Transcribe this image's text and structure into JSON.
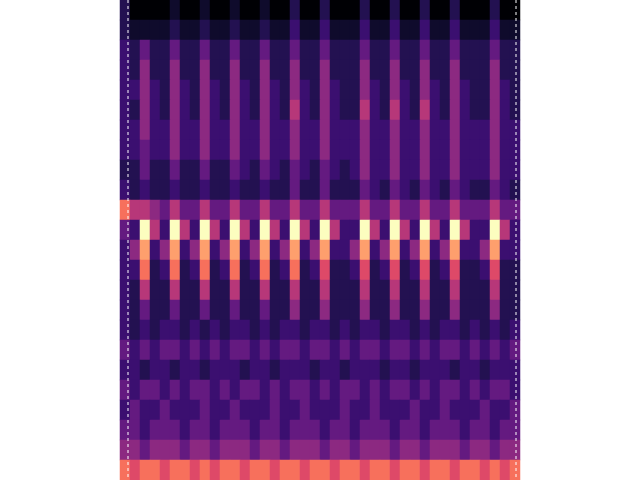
{
  "chart_data": {
    "type": "heatmap",
    "tick_labels": false,
    "zlim": [
      0,
      10
    ],
    "z": [
      [
        2,
        0,
        0,
        0,
        0,
        1,
        0,
        0,
        1,
        0,
        0,
        1,
        0,
        0,
        1,
        0,
        0,
        2,
        0,
        0,
        2,
        0,
        0,
        0,
        2,
        0,
        0,
        2,
        0,
        0,
        2,
        0,
        0,
        2,
        0,
        0,
        0,
        2,
        0,
        0
      ],
      [
        2,
        1,
        1,
        1,
        1,
        2,
        1,
        1,
        2,
        1,
        1,
        2,
        1,
        1,
        2,
        1,
        1,
        3,
        1,
        1,
        3,
        1,
        1,
        1,
        3,
        1,
        1,
        3,
        1,
        1,
        3,
        1,
        1,
        3,
        1,
        1,
        1,
        3,
        1,
        1
      ],
      [
        3,
        2,
        4,
        2,
        2,
        4,
        2,
        2,
        4,
        2,
        2,
        4,
        2,
        2,
        4,
        2,
        2,
        4,
        2,
        2,
        4,
        2,
        2,
        2,
        4,
        2,
        2,
        4,
        2,
        2,
        4,
        2,
        2,
        4,
        2,
        2,
        2,
        4,
        2,
        2
      ],
      [
        3,
        2,
        5,
        2,
        2,
        5,
        2,
        2,
        5,
        2,
        2,
        5,
        2,
        2,
        5,
        2,
        2,
        5,
        2,
        2,
        5,
        2,
        2,
        2,
        5,
        2,
        2,
        5,
        2,
        2,
        5,
        2,
        2,
        5,
        2,
        2,
        2,
        5,
        2,
        2
      ],
      [
        3,
        3,
        5,
        3,
        2,
        5,
        3,
        2,
        5,
        3,
        2,
        5,
        3,
        2,
        5,
        3,
        2,
        5,
        3,
        2,
        5,
        3,
        2,
        2,
        5,
        3,
        2,
        5,
        3,
        2,
        5,
        3,
        2,
        5,
        3,
        2,
        2,
        5,
        3,
        2
      ],
      [
        3,
        2,
        5,
        3,
        2,
        5,
        3,
        2,
        5,
        3,
        2,
        5,
        3,
        2,
        5,
        3,
        2,
        6,
        3,
        2,
        5,
        3,
        2,
        2,
        6,
        3,
        2,
        6,
        3,
        2,
        6,
        3,
        2,
        5,
        3,
        2,
        2,
        5,
        3,
        2
      ],
      [
        3,
        3,
        5,
        3,
        3,
        5,
        3,
        3,
        5,
        3,
        3,
        5,
        3,
        3,
        5,
        3,
        3,
        5,
        3,
        3,
        5,
        3,
        3,
        3,
        5,
        3,
        3,
        5,
        3,
        3,
        5,
        3,
        3,
        5,
        3,
        3,
        3,
        5,
        3,
        3
      ],
      [
        3,
        3,
        4,
        3,
        3,
        5,
        3,
        3,
        5,
        3,
        3,
        5,
        3,
        3,
        5,
        3,
        3,
        5,
        3,
        3,
        5,
        3,
        3,
        3,
        5,
        3,
        3,
        5,
        3,
        3,
        5,
        3,
        3,
        5,
        3,
        3,
        3,
        5,
        3,
        3
      ],
      [
        2,
        2,
        4,
        2,
        2,
        4,
        2,
        2,
        4,
        2,
        2,
        4,
        3,
        2,
        4,
        3,
        2,
        4,
        3,
        2,
        4,
        3,
        2,
        3,
        5,
        3,
        3,
        5,
        3,
        3,
        5,
        3,
        3,
        5,
        3,
        3,
        3,
        5,
        3,
        3
      ],
      [
        3,
        2,
        3,
        2,
        2,
        3,
        2,
        2,
        3,
        2,
        2,
        3,
        2,
        2,
        3,
        2,
        2,
        4,
        2,
        2,
        4,
        2,
        2,
        2,
        4,
        3,
        2,
        4,
        3,
        2,
        4,
        3,
        2,
        4,
        3,
        2,
        2,
        4,
        3,
        2
      ],
      [
        8,
        6,
        6,
        5,
        4,
        6,
        4,
        4,
        6,
        4,
        4,
        6,
        4,
        4,
        6,
        4,
        4,
        6,
        4,
        4,
        6,
        4,
        4,
        4,
        6,
        4,
        4,
        6,
        4,
        4,
        6,
        4,
        4,
        6,
        4,
        4,
        4,
        6,
        4,
        4
      ],
      [
        4,
        3,
        10,
        6,
        3,
        10,
        6,
        3,
        10,
        6,
        3,
        10,
        6,
        3,
        10,
        6,
        3,
        10,
        6,
        3,
        10,
        6,
        3,
        3,
        10,
        6,
        3,
        10,
        6,
        3,
        10,
        6,
        3,
        10,
        6,
        3,
        3,
        10,
        6,
        3
      ],
      [
        3,
        5,
        9,
        3,
        5,
        9,
        3,
        5,
        9,
        3,
        5,
        9,
        3,
        5,
        9,
        3,
        5,
        9,
        3,
        5,
        9,
        3,
        3,
        5,
        9,
        3,
        5,
        9,
        3,
        5,
        9,
        3,
        5,
        9,
        3,
        3,
        5,
        9,
        3,
        3
      ],
      [
        3,
        3,
        8,
        2,
        3,
        8,
        2,
        3,
        8,
        2,
        3,
        8,
        2,
        3,
        8,
        2,
        3,
        8,
        2,
        3,
        7,
        2,
        2,
        3,
        7,
        2,
        3,
        7,
        2,
        3,
        7,
        2,
        3,
        7,
        2,
        2,
        3,
        7,
        2,
        2
      ],
      [
        3,
        2,
        6,
        2,
        2,
        6,
        2,
        2,
        6,
        2,
        2,
        6,
        2,
        2,
        6,
        2,
        2,
        6,
        2,
        2,
        6,
        2,
        2,
        2,
        6,
        2,
        2,
        6,
        2,
        2,
        6,
        2,
        2,
        6,
        2,
        2,
        2,
        6,
        2,
        2
      ],
      [
        3,
        2,
        4,
        2,
        2,
        4,
        2,
        2,
        4,
        2,
        2,
        4,
        2,
        2,
        4,
        2,
        2,
        5,
        2,
        2,
        5,
        2,
        2,
        2,
        5,
        2,
        2,
        5,
        2,
        2,
        5,
        2,
        2,
        5,
        2,
        2,
        2,
        5,
        2,
        2
      ],
      [
        3,
        2,
        3,
        2,
        3,
        3,
        2,
        3,
        2,
        3,
        2,
        3,
        3,
        2,
        3,
        2,
        3,
        3,
        2,
        3,
        3,
        2,
        3,
        2,
        3,
        3,
        2,
        3,
        3,
        2,
        3,
        2,
        3,
        3,
        2,
        3,
        2,
        3,
        2,
        3
      ],
      [
        4,
        3,
        4,
        3,
        4,
        4,
        3,
        4,
        3,
        4,
        3,
        4,
        4,
        3,
        4,
        3,
        4,
        4,
        3,
        4,
        4,
        3,
        4,
        3,
        4,
        4,
        3,
        4,
        4,
        3,
        4,
        3,
        4,
        4,
        3,
        4,
        3,
        4,
        3,
        4
      ],
      [
        3,
        3,
        2,
        3,
        3,
        2,
        3,
        3,
        2,
        3,
        3,
        3,
        2,
        3,
        3,
        2,
        3,
        3,
        3,
        2,
        3,
        3,
        2,
        3,
        3,
        3,
        2,
        3,
        3,
        2,
        3,
        3,
        3,
        2,
        3,
        3,
        2,
        3,
        3,
        3
      ],
      [
        4,
        3,
        4,
        4,
        3,
        4,
        3,
        4,
        4,
        3,
        4,
        3,
        4,
        4,
        3,
        4,
        3,
        4,
        4,
        3,
        4,
        3,
        4,
        4,
        3,
        4,
        3,
        4,
        4,
        3,
        4,
        3,
        4,
        4,
        3,
        4,
        3,
        4,
        4,
        3
      ],
      [
        3,
        4,
        3,
        3,
        4,
        3,
        3,
        3,
        4,
        3,
        3,
        4,
        3,
        3,
        3,
        4,
        3,
        3,
        4,
        3,
        3,
        3,
        4,
        3,
        3,
        4,
        3,
        3,
        3,
        4,
        3,
        3,
        4,
        3,
        3,
        3,
        4,
        3,
        3,
        4
      ],
      [
        4,
        4,
        3,
        4,
        4,
        4,
        3,
        4,
        4,
        3,
        4,
        4,
        4,
        3,
        4,
        4,
        3,
        4,
        4,
        4,
        3,
        4,
        4,
        3,
        4,
        4,
        4,
        3,
        4,
        4,
        3,
        4,
        4,
        4,
        3,
        4,
        4,
        3,
        4,
        4
      ],
      [
        5,
        5,
        4,
        5,
        5,
        5,
        4,
        5,
        5,
        4,
        5,
        5,
        5,
        4,
        5,
        5,
        4,
        5,
        5,
        5,
        4,
        5,
        5,
        4,
        5,
        5,
        5,
        4,
        5,
        5,
        4,
        5,
        5,
        5,
        4,
        5,
        5,
        4,
        5,
        5
      ],
      [
        8,
        7,
        8,
        8,
        7,
        8,
        8,
        7,
        8,
        7,
        8,
        8,
        7,
        8,
        8,
        7,
        8,
        8,
        7,
        8,
        8,
        7,
        8,
        8,
        7,
        8,
        8,
        7,
        8,
        8,
        7,
        8,
        8,
        7,
        8,
        8,
        7,
        8,
        7,
        8
      ]
    ]
  }
}
